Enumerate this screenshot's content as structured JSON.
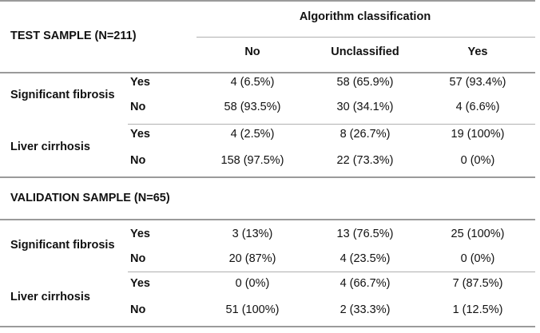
{
  "header": {
    "group_title": "Algorithm classification",
    "columns": [
      "No",
      "Unclassified",
      "Yes"
    ]
  },
  "sections": [
    {
      "title": "TEST SAMPLE (N=211)",
      "groups": [
        {
          "label": "Significant fibrosis",
          "rows": [
            {
              "label": "Yes",
              "values": [
                "4 (6.5%)",
                "58 (65.9%)",
                "57 (93.4%)"
              ]
            },
            {
              "label": "No",
              "values": [
                "58 (93.5%)",
                "30 (34.1%)",
                "4 (6.6%)"
              ]
            }
          ]
        },
        {
          "label": "Liver cirrhosis",
          "rows": [
            {
              "label": "Yes",
              "values": [
                "4 (2.5%)",
                "8 (26.7%)",
                "19 (100%)"
              ]
            },
            {
              "label": "No",
              "values": [
                "158 (97.5%)",
                "22 (73.3%)",
                "0 (0%)"
              ]
            }
          ]
        }
      ]
    },
    {
      "title": "VALIDATION SAMPLE (N=65)",
      "groups": [
        {
          "label": "Significant fibrosis",
          "rows": [
            {
              "label": "Yes",
              "values": [
                "3 (13%)",
                "13 (76.5%)",
                "25 (100%)"
              ]
            },
            {
              "label": "No",
              "values": [
                "20 (87%)",
                "4 (23.5%)",
                "0 (0%)"
              ]
            }
          ]
        },
        {
          "label": "Liver cirrhosis",
          "rows": [
            {
              "label": "Yes",
              "values": [
                "0 (0%)",
                "4 (66.7%)",
                "7 (87.5%)"
              ]
            },
            {
              "label": "No",
              "values": [
                "51 (100%)",
                "2 (33.3%)",
                "1 (12.5%)"
              ]
            }
          ]
        }
      ]
    }
  ]
}
